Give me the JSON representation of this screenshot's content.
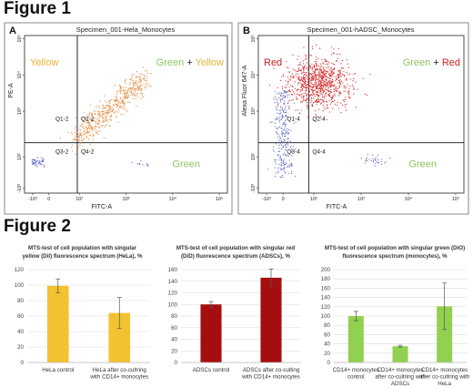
{
  "figure1_title": "Figure 1",
  "figure2_title": "Figure 2",
  "chart_data": [
    {
      "type": "scatter",
      "panel_letter": "A",
      "title": "Specimen_001-Hela_Monocytes",
      "xlabel": "FITC-A",
      "ylabel": "PE-A",
      "x_ticks": [
        "-10³",
        "0",
        "10²",
        "10³",
        "10⁴",
        "10⁵"
      ],
      "y_ticks": [
        "-10³",
        "10²",
        "10³",
        "10⁴",
        "10⁵"
      ],
      "gates": [
        "Q1-2",
        "Q2-2",
        "Q3-2",
        "Q4-2"
      ],
      "annotations": {
        "left": "Yellow",
        "right_a": "Green",
        "plus": "+",
        "right_b": "Yellow",
        "bottom_right": "Green"
      },
      "colors": {
        "left": "#e8b43a",
        "right_a": "#8fc463",
        "right_b": "#e8b43a",
        "bottom_right": "#8fc463",
        "dots_main": "#e8924a",
        "dots_minor": "#5b66c9"
      }
    },
    {
      "type": "scatter",
      "panel_letter": "B",
      "title": "Specimen_001-hADSC_Monocytes",
      "xlabel": "FITC-A",
      "ylabel": "Alexa Fluor 647-A",
      "x_ticks": [
        "-10³",
        "0",
        "10²",
        "10³",
        "10⁴",
        "10⁵"
      ],
      "y_ticks": [
        "-10³",
        "10²",
        "10³",
        "10⁴",
        "10⁵"
      ],
      "gates": [
        "Q1-4",
        "Q2-4",
        "Q3-4",
        "Q4-4"
      ],
      "annotations": {
        "left": "Red",
        "right_a": "Green",
        "plus": "+",
        "right_b": "Red",
        "bottom_right": "Green"
      },
      "colors": {
        "left": "#cc2222",
        "right_a": "#8fc463",
        "right_b": "#cc2222",
        "bottom_right": "#8fc463",
        "dots_main": "#d42a2a",
        "dots_minor": "#5b66c9"
      }
    },
    {
      "type": "bar",
      "title_lines": [
        "MTS-test of cell population with singular",
        "yellow (DiI) fluorescence spectrum (HeLa), %"
      ],
      "categories": [
        [
          "HeLa control"
        ],
        [
          "HeLa after co-cultring",
          "with CD14+ monocytes"
        ]
      ],
      "values": [
        99,
        64
      ],
      "errors": [
        9,
        20
      ],
      "ylim": [
        0,
        120
      ],
      "yticks": [
        0,
        20,
        40,
        60,
        80,
        100,
        120
      ],
      "color": "#f2c230",
      "grid": true
    },
    {
      "type": "bar",
      "title_lines": [
        "MTS-test of cell population with singular red",
        "(DiD) fluorescence spectrum (ADSCs), %"
      ],
      "categories": [
        [
          "ADSCs control"
        ],
        [
          "ADSCs after co-culting",
          "with CD14+ monocytes"
        ]
      ],
      "values": [
        100,
        146
      ],
      "errors": [
        5,
        15
      ],
      "ylim": [
        0,
        160
      ],
      "yticks": [
        0,
        20,
        40,
        60,
        80,
        100,
        120,
        140,
        160
      ],
      "color": "#a50e0e",
      "grid": true
    },
    {
      "type": "bar",
      "title_lines": [
        "MTS-test of cell population with singular green (DiO)",
        "fluorescence spectrum (monocytes), %"
      ],
      "categories": [
        [
          "CD14+ monocytes",
          "control"
        ],
        [
          "CD14+ monocytes",
          "after co-cultring with",
          "ADSCs"
        ],
        [
          "CD14+ monocytes",
          "after co-cultring with",
          "HeLa"
        ]
      ],
      "values": [
        100,
        35,
        121
      ],
      "errors": [
        10,
        2,
        50
      ],
      "ylim": [
        0,
        200
      ],
      "yticks": [
        0,
        20,
        40,
        60,
        80,
        100,
        120,
        140,
        160,
        180,
        200
      ],
      "color": "#92d050",
      "grid": true
    }
  ]
}
